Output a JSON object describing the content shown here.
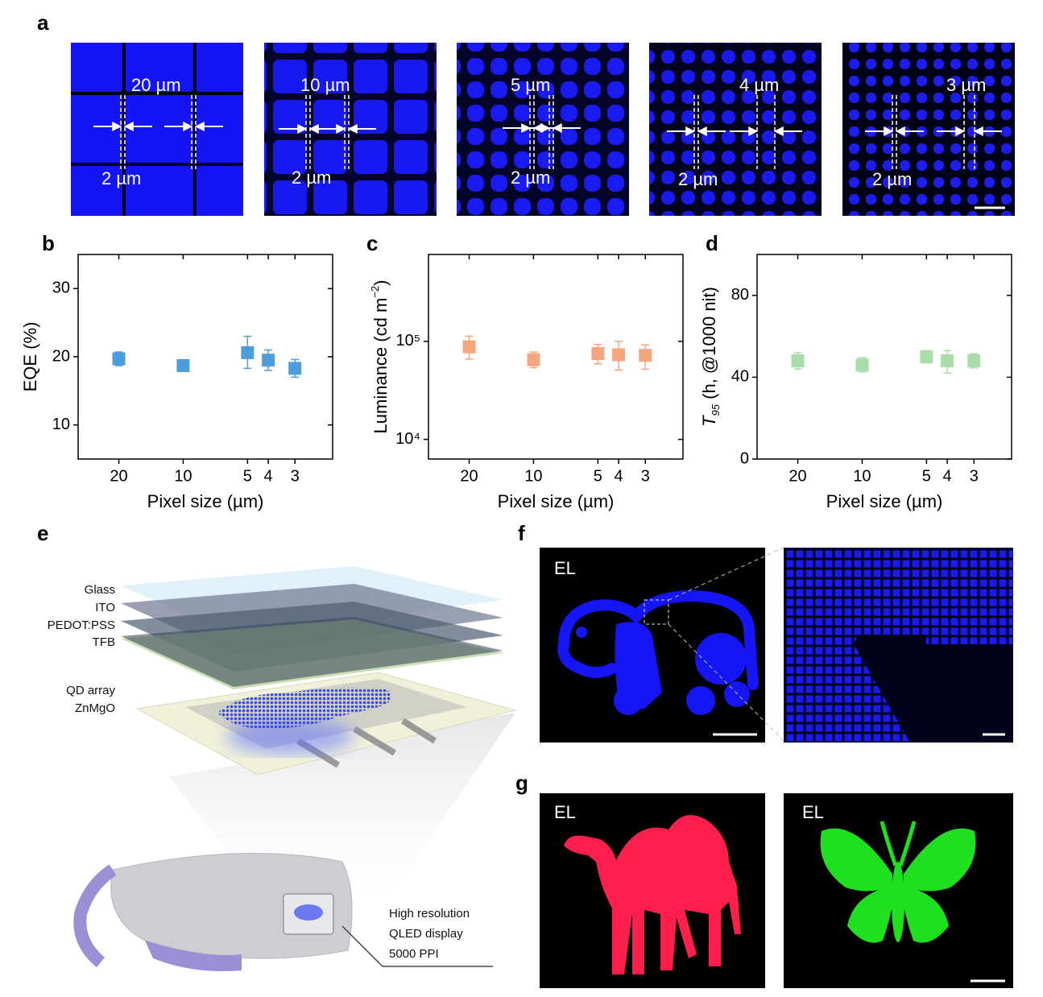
{
  "panel_labels": [
    "a",
    "b",
    "c",
    "d",
    "e",
    "f",
    "g"
  ],
  "panel_a": {
    "pitch_labels": [
      "20 µm",
      "10 µm",
      "5 µm",
      "4 µm",
      "3 µm"
    ],
    "gap_labels": [
      "2 µm",
      "2 µm",
      "2 µm",
      "2 µm",
      "2 µm"
    ]
  },
  "chart_data": [
    {
      "type": "scatter",
      "x": [
        20,
        10,
        5,
        4,
        3
      ],
      "xlim": [
        31,
        2
      ],
      "xscale": "log",
      "xticks": [
        20,
        10,
        5,
        4,
        3
      ],
      "x_label": "Pixel size (µm)",
      "y_label": "EQE (%)",
      "ylim": [
        5,
        35
      ],
      "yscale": "linear",
      "yticks": [
        10,
        20,
        30
      ],
      "color": "#4e9ddb",
      "values": [
        19.7,
        18.7,
        20.6,
        19.5,
        18.3
      ],
      "lower": [
        18.7,
        18.3,
        18.3,
        18.0,
        17.0
      ],
      "upper": [
        20.7,
        19.2,
        23.0,
        21.0,
        19.6
      ]
    },
    {
      "type": "scatter",
      "x": [
        20,
        10,
        5,
        4,
        3
      ],
      "xlim": [
        31,
        2
      ],
      "xscale": "log",
      "xticks": [
        20,
        10,
        5,
        4,
        3
      ],
      "x_label": "Pixel size (µm)",
      "y_label": [
        "Luminance (cd m",
        "−2",
        ")"
      ],
      "y_label_styles": [
        "normal",
        "sup",
        "normal"
      ],
      "ylim": [
        6300,
        770000
      ],
      "yscale": "log",
      "yticks": [
        {
          "value": 10000,
          "label": "10⁴"
        },
        {
          "value": 100000,
          "label": "10⁵"
        }
      ],
      "color": "#f5a67f",
      "values": [
        88000,
        65000,
        75000,
        73000,
        72000
      ],
      "lower": [
        66000,
        54000,
        59000,
        51000,
        52000
      ],
      "upper": [
        113000,
        78000,
        93000,
        100000,
        92000
      ]
    },
    {
      "type": "scatter",
      "x": [
        20,
        10,
        5,
        4,
        3
      ],
      "xlim": [
        31,
        2
      ],
      "xscale": "log",
      "xticks": [
        20,
        10,
        5,
        4,
        3
      ],
      "x_label": "Pixel size (µm)",
      "y_label": [
        "T",
        "95",
        " (h, @1000 nit)"
      ],
      "y_label_styles": [
        "italic",
        "sub italic",
        "normal"
      ],
      "ylim": [
        0,
        100
      ],
      "yscale": "linear",
      "yticks": [
        0,
        40,
        80
      ],
      "color": "#a9dca9",
      "values": [
        48,
        46,
        50,
        48,
        48
      ],
      "lower": [
        44,
        42.5,
        47,
        42,
        44.5
      ],
      "upper": [
        52,
        49.5,
        53,
        53,
        51.5
      ]
    }
  ],
  "panel_e": {
    "layers": [
      "Glass",
      "ITO",
      "PEDOT:PSS",
      "TFB"
    ],
    "qd_layers": [
      "QD array",
      "ZnMgO"
    ],
    "callout": [
      "High resolution",
      "QLED display",
      "5000 PPI"
    ]
  },
  "panel_f": {
    "label": "EL"
  },
  "panel_g": {
    "labels": [
      "EL",
      "EL"
    ]
  }
}
